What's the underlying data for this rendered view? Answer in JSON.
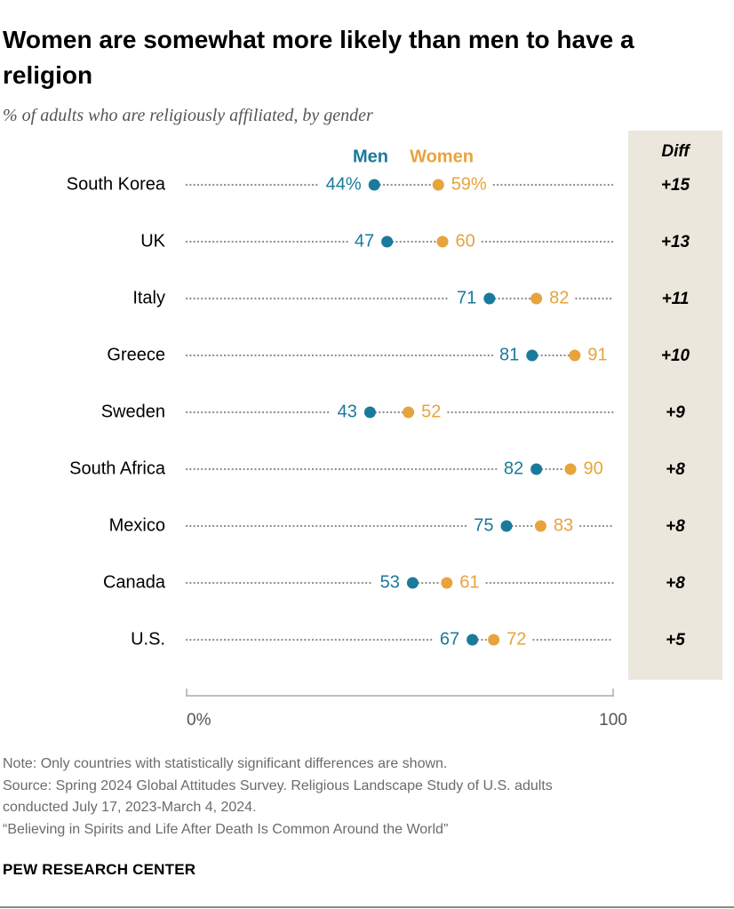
{
  "title": "Women are somewhat more likely than men to have a religion",
  "subtitle": "% of adults who are religiously affiliated, by gender",
  "notes": {
    "note": "Note: Only countries with statistically significant differences are shown.",
    "source_line1": "Source: Spring 2024 Global Attitudes Survey. Religious Landscape Study of U.S. adults",
    "source_line2": "conducted July 17, 2023-March 4, 2024.",
    "report": "“Believing in Spirits and Life After Death Is Common Around the World”"
  },
  "footer": "PEW RESEARCH CENTER",
  "colors": {
    "men": "#1a7a9b",
    "women": "#e8a33d",
    "diff_band": "#ebe7dc",
    "dotted": "#8c8c8c"
  },
  "chart_data": {
    "type": "dot",
    "title": "Women are somewhat more likely than men to have a religion",
    "subtitle": "% of adults who are religiously affiliated, by gender",
    "categories": [
      "South Korea",
      "UK",
      "Italy",
      "Greece",
      "Sweden",
      "South Africa",
      "Mexico",
      "Canada",
      "U.S."
    ],
    "series": [
      {
        "name": "Men",
        "values": [
          44,
          47,
          71,
          81,
          43,
          82,
          75,
          53,
          67
        ]
      },
      {
        "name": "Women",
        "values": [
          59,
          60,
          82,
          91,
          52,
          90,
          83,
          61,
          72
        ]
      }
    ],
    "value_labels": {
      "Men": [
        "44%",
        "47",
        "71",
        "81",
        "43",
        "82",
        "75",
        "53",
        "67"
      ],
      "Women": [
        "59%",
        "60",
        "82",
        "91",
        "52",
        "90",
        "83",
        "61",
        "72"
      ]
    },
    "diff_header": "Diff",
    "diff": [
      "+15",
      "+13",
      "+11",
      "+10",
      "+9",
      "+8",
      "+8",
      "+8",
      "+5"
    ],
    "xlim": [
      0,
      100
    ],
    "tick_labels": [
      "0%",
      "100"
    ],
    "legend": [
      "Men",
      "Women"
    ],
    "legend_position": "top-center",
    "grid": false
  }
}
